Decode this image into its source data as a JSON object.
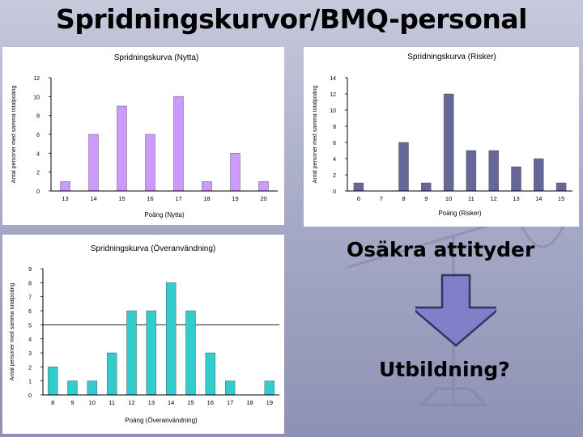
{
  "slide": {
    "title": "Spridningskurvor/BMQ-personal",
    "label_top": "Osäkra attityder",
    "label_bottom": "Utbildning?"
  },
  "chart_data": [
    {
      "type": "bar",
      "title": "Spridningskurva (Nytta)",
      "xlabel": "Poäng (Nytta)",
      "ylabel": "Antal personer med samma totalpoäng",
      "categories": [
        "13",
        "14",
        "15",
        "16",
        "17",
        "18",
        "19",
        "20"
      ],
      "values": [
        1,
        6,
        9,
        6,
        10,
        1,
        4,
        1
      ],
      "yticks": [
        0,
        2,
        4,
        6,
        8,
        10,
        12
      ],
      "ylim": [
        0,
        12
      ],
      "grid": false,
      "color": "#cc99ff"
    },
    {
      "type": "bar",
      "title": "Spridningskurva (Risker)",
      "xlabel": "Poäng (Risker)",
      "ylabel": "Antal personer med samma totalpoäng",
      "categories": [
        "6",
        "7",
        "8",
        "9",
        "10",
        "11",
        "12",
        "13",
        "14",
        "15"
      ],
      "values": [
        1,
        0,
        6,
        1,
        12,
        5,
        5,
        3,
        4,
        1
      ],
      "ytick_labels": [
        "0",
        "2",
        "4",
        "6",
        "8",
        "10",
        "12",
        "14"
      ],
      "ylim": [
        0,
        14
      ],
      "grid": false,
      "color": "#666699"
    },
    {
      "type": "bar",
      "title": "Spridningskurva (Överanvändning)",
      "xlabel": "Poäng (Överanvändning)",
      "ylabel": "Antal personer med samma totalpoäng",
      "categories": [
        "8",
        "9",
        "10",
        "11",
        "12",
        "13",
        "14",
        "15",
        "16",
        "17",
        "18",
        "19"
      ],
      "values": [
        2,
        1,
        1,
        3,
        6,
        6,
        8,
        6,
        3,
        1,
        0,
        1
      ],
      "yticks": [
        0,
        1,
        2,
        3,
        4,
        5,
        6,
        7,
        8,
        9
      ],
      "ylim": [
        0,
        9
      ],
      "reference_line": 5,
      "grid": false,
      "color": "#33cccc"
    }
  ]
}
